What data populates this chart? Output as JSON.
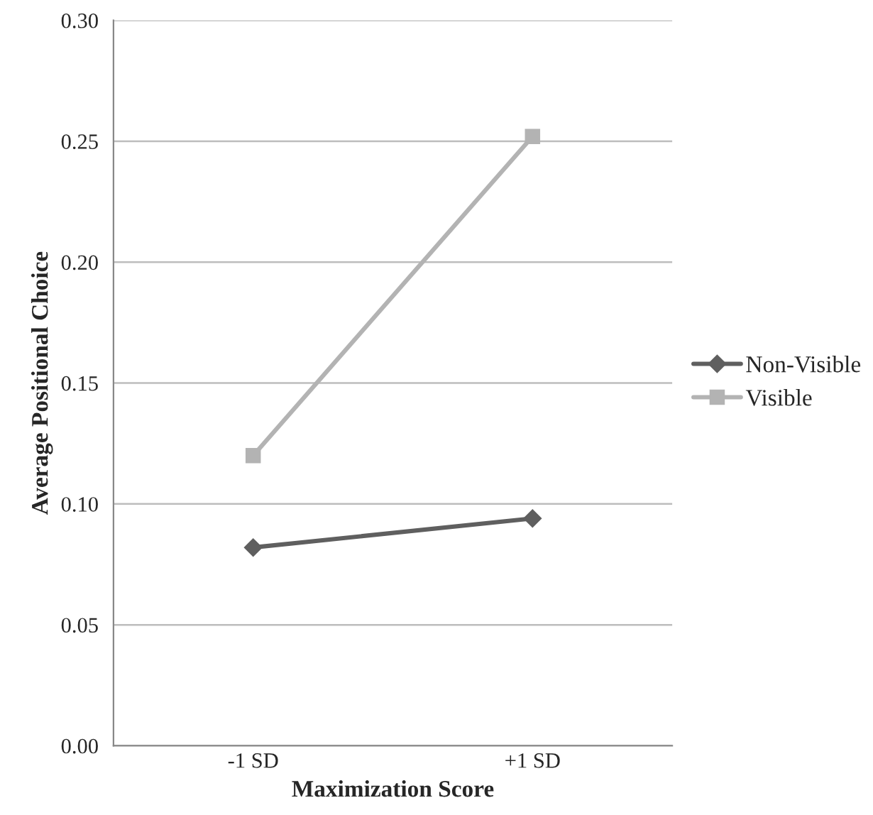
{
  "chart_data": {
    "type": "line",
    "xlabel": "Maximization Score",
    "ylabel": "Average Positional Choice",
    "categories": [
      "-1 SD",
      "+1 SD"
    ],
    "series": [
      {
        "name": "Non-Visible",
        "color": "#5f5f5f",
        "marker": "diamond",
        "values": [
          0.082,
          0.094
        ]
      },
      {
        "name": "Visible",
        "color": "#b3b3b3",
        "marker": "square",
        "values": [
          0.12,
          0.252
        ]
      }
    ],
    "ylim": [
      0,
      0.3
    ],
    "yticks": [
      {
        "value": 0,
        "label": "0.00"
      },
      {
        "value": 0.05,
        "label": "0.05"
      },
      {
        "value": 0.1,
        "label": "0.10"
      },
      {
        "value": 0.15,
        "label": "0.15"
      },
      {
        "value": 0.2,
        "label": "0.20"
      },
      {
        "value": 0.25,
        "label": "0.25"
      },
      {
        "value": 0.3,
        "label": "0.30"
      }
    ],
    "grid": "y",
    "legend": "right",
    "line_style": "solid"
  }
}
